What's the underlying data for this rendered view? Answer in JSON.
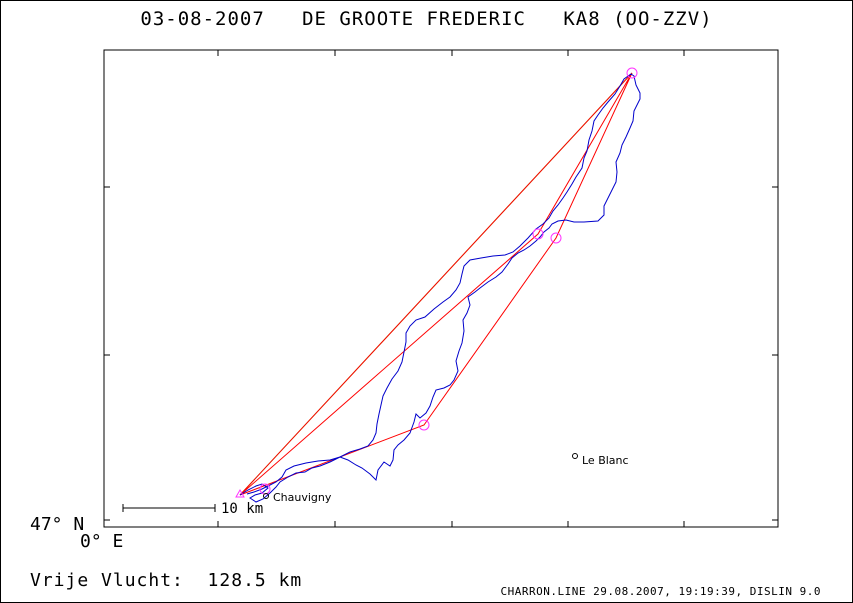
{
  "header": {
    "title": "03-08-2007   DE GROOTE FREDERIC   KA8 (OO-ZZV)"
  },
  "axes": {
    "lat_label": "47° N",
    "lon_label": "0° E"
  },
  "places": [
    {
      "name": "Chauvigny"
    },
    {
      "name": "Le Blanc"
    }
  ],
  "scale": {
    "label": "10 km"
  },
  "summary": {
    "distance_text": "Vrije Vlucht:  128.5 km"
  },
  "footer": {
    "text": "CHARRON.LINE 29.08.2007, 19:19:39, DISLIN 9.0"
  },
  "colors": {
    "track": "#0000cc",
    "task": "#ff0000",
    "straight": "#66dd33",
    "turnpoint": "#ff33ff",
    "axis": "#000000"
  },
  "chart_data": {
    "type": "line",
    "title": "03-08-2007   DE GROOTE FREDERIC   KA8 (OO-ZZV)",
    "xlabel": "0° E",
    "ylabel": "47° N",
    "grid": false,
    "series": []
  }
}
